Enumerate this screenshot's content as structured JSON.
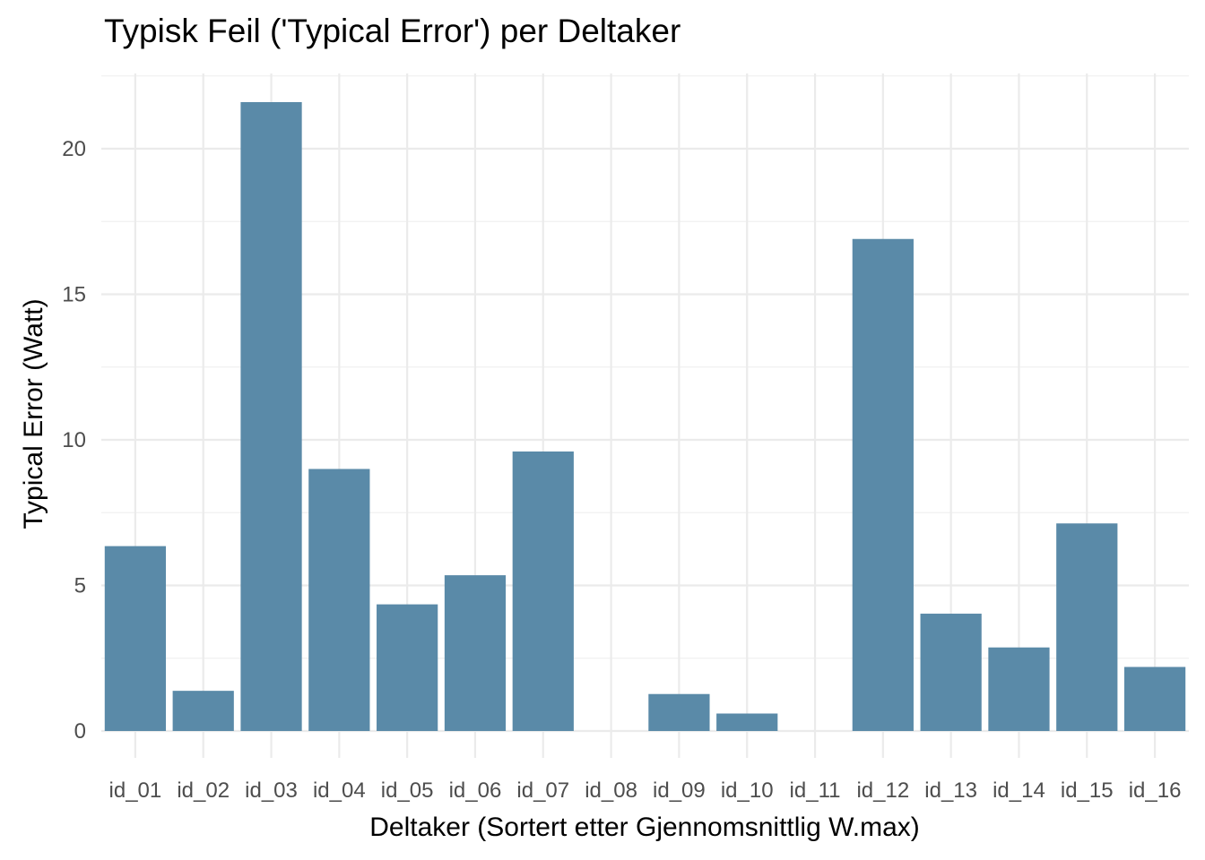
{
  "chart_data": {
    "type": "bar",
    "title": "Typisk Feil ('Typical Error') per Deltaker",
    "xlabel": "Deltaker (Sortert etter Gjennomsnittlig W.max)",
    "ylabel": "Typical Error (Watt)",
    "categories": [
      "id_01",
      "id_02",
      "id_03",
      "id_04",
      "id_05",
      "id_06",
      "id_07",
      "id_08",
      "id_09",
      "id_10",
      "id_11",
      "id_12",
      "id_13",
      "id_14",
      "id_15",
      "id_16"
    ],
    "values": [
      6.35,
      1.38,
      21.6,
      9.0,
      4.35,
      5.35,
      9.6,
      null,
      1.27,
      0.6,
      null,
      16.9,
      4.03,
      2.87,
      7.13,
      2.2
    ],
    "ylim": [
      0,
      22.5
    ],
    "yticks": [
      0,
      5,
      10,
      15,
      20
    ],
    "grid": true,
    "bar_color": "#5a8aa8"
  }
}
